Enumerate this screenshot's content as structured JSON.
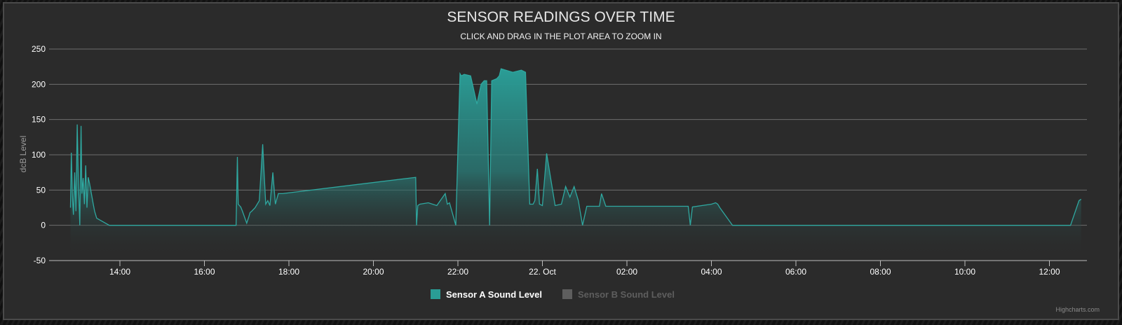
{
  "chart_data": {
    "type": "area",
    "title": "SENSOR READINGS OVER TIME",
    "subtitle": "CLICK AND DRAG IN THE PLOT AREA TO ZOOM IN",
    "ylabel": "dcB Level",
    "ylim": [
      -50,
      250
    ],
    "yticks": [
      -50,
      0,
      50,
      100,
      150,
      200,
      250
    ],
    "xticks": [
      "14:00",
      "16:00",
      "18:00",
      "20:00",
      "22:00",
      "22. Oct",
      "02:00",
      "04:00",
      "06:00",
      "08:00",
      "10:00",
      "12:00"
    ],
    "grid": true,
    "legend_placement": "bottom-center",
    "credits": "Highcharts.com",
    "series": [
      {
        "name": "Sensor A Sound Level",
        "color": "#2a9d96",
        "visible": true,
        "x_hours": [
          12.83,
          12.85,
          12.88,
          12.9,
          12.93,
          12.96,
          12.99,
          13.02,
          13.05,
          13.08,
          13.1,
          13.13,
          13.16,
          13.19,
          13.22,
          13.25,
          13.28,
          13.31,
          13.34,
          13.37,
          13.4,
          13.45,
          13.75,
          16.75,
          16.78,
          16.8,
          16.83,
          16.86,
          16.9,
          17.0,
          17.05,
          17.08,
          17.12,
          17.2,
          17.3,
          17.38,
          17.45,
          17.5,
          17.55,
          17.62,
          17.68,
          17.75,
          17.8,
          17.85,
          21.0,
          21.02,
          21.05,
          21.1,
          21.3,
          21.5,
          21.7,
          21.75,
          21.8,
          21.95,
          22.05,
          22.08,
          22.15,
          22.3,
          22.45,
          22.55,
          22.62,
          22.68,
          22.75,
          22.8,
          22.92,
          22.95,
          22.98,
          23.02,
          23.3,
          23.5,
          23.6,
          23.7,
          23.78,
          23.82,
          23.88,
          23.93,
          24.0,
          24.1,
          24.3,
          24.45,
          24.55,
          24.65,
          24.75,
          24.85,
          24.95,
          25.05,
          25.1,
          25.15,
          25.2,
          25.25,
          25.3,
          25.35,
          25.4,
          25.5,
          26.0,
          27.0,
          27.45,
          27.5,
          27.55,
          28.0,
          28.1,
          28.15,
          28.2,
          28.5,
          28.6,
          28.75,
          36.0,
          36.5,
          36.7,
          36.75
        ],
        "values": [
          25,
          103,
          35,
          15,
          75,
          20,
          143,
          55,
          0,
          141,
          45,
          67,
          30,
          85,
          25,
          68,
          60,
          50,
          40,
          30,
          20,
          10,
          0,
          0,
          97,
          30,
          28,
          26,
          20,
          3,
          12,
          18,
          20,
          25,
          35,
          115,
          30,
          35,
          28,
          75,
          30,
          45,
          45,
          45,
          68,
          0,
          28,
          30,
          32,
          28,
          45,
          30,
          32,
          0,
          215,
          212,
          214,
          212,
          172,
          200,
          205,
          205,
          0,
          205,
          208,
          210,
          212,
          222,
          217,
          220,
          217,
          30,
          30,
          35,
          80,
          30,
          28,
          102,
          28,
          30,
          55,
          40,
          55,
          35,
          0,
          27,
          27,
          27,
          27,
          27,
          27,
          27,
          45,
          27,
          27,
          27,
          27,
          0,
          26,
          30,
          32,
          30,
          25,
          0,
          0,
          0,
          0,
          0,
          35,
          37
        ]
      },
      {
        "name": "Sensor B Sound Level",
        "color": "#5e5e5e",
        "visible": false,
        "values": []
      }
    ]
  }
}
